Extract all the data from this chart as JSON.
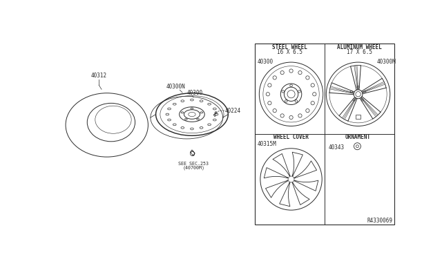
{
  "bg_color": "#ffffff",
  "line_color": "#2a2a2a",
  "lw": 0.7,
  "ref_code": "R4330069",
  "panel_labels": {
    "steel_title1": "STEEL WHEEL",
    "steel_title2": "16 X 6.5",
    "steel_part": "40300",
    "alum_title1": "ALUMINUM WHEEL",
    "alum_title2": "17 X 6.5",
    "alum_part": "40300M",
    "cover_title": "WHEEL COVER",
    "cover_part": "40315M",
    "orn_title": "ORNAMENT",
    "orn_part": "40343"
  },
  "left_labels": {
    "tire": "40312",
    "wheel_n": "40300N",
    "wheel": "40300",
    "valve": "40224",
    "see_sec1": "SEE SEC.253",
    "see_sec2": "(40700M)"
  }
}
